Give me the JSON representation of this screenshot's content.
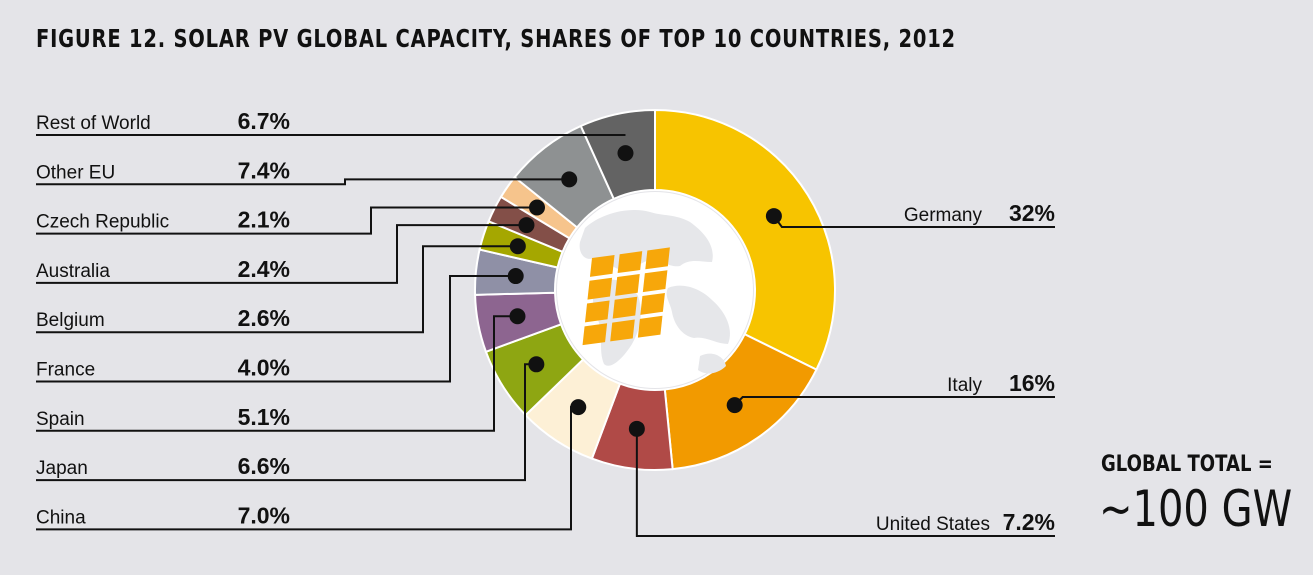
{
  "title": "FIGURE 12. SOLAR PV GLOBAL CAPACITY, SHARES OF TOP 10 COUNTRIES, 2012",
  "total": {
    "label": "GLOBAL TOTAL =",
    "value": "~100 GW"
  },
  "icon": "globe-with-solar-panel-icon",
  "chart_data": {
    "type": "pie",
    "variant": "donut",
    "unit": "%",
    "slices": [
      {
        "name": "Germany",
        "value": 32,
        "value_label": "32%",
        "color": "#f7c400"
      },
      {
        "name": "Italy",
        "value": 16,
        "value_label": "16%",
        "color": "#f29a00"
      },
      {
        "name": "United States",
        "value": 7.2,
        "value_label": "7.2%",
        "color": "#b04a47"
      },
      {
        "name": "China",
        "value": 7.0,
        "value_label": "7.0%",
        "color": "#fdf0d6"
      },
      {
        "name": "Japan",
        "value": 6.6,
        "value_label": "6.6%",
        "color": "#8ea612"
      },
      {
        "name": "Spain",
        "value": 5.1,
        "value_label": "5.1%",
        "color": "#8d6590"
      },
      {
        "name": "France",
        "value": 4.0,
        "value_label": "4.0%",
        "color": "#8f90a6"
      },
      {
        "name": "Belgium",
        "value": 2.6,
        "value_label": "2.6%",
        "color": "#a5a700"
      },
      {
        "name": "Australia",
        "value": 2.4,
        "value_label": "2.4%",
        "color": "#834f48"
      },
      {
        "name": "Czech Republic",
        "value": 2.1,
        "value_label": "2.1%",
        "color": "#f6c48c"
      },
      {
        "name": "Other EU",
        "value": 7.4,
        "value_label": "7.4%",
        "color": "#8e9192"
      },
      {
        "name": "Rest of World",
        "value": 6.7,
        "value_label": "6.7%",
        "color": "#636363"
      }
    ],
    "label_placement": "left-list and right callouts"
  }
}
